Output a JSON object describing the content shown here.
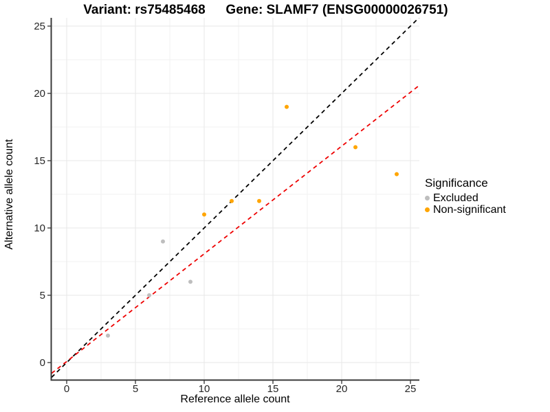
{
  "chart_data": {
    "type": "scatter",
    "title_left": "Variant: rs75485468",
    "title_right": "Gene: SLAMF7 (ENSG00000026751)",
    "xlabel": "Reference allele count",
    "ylabel": "Alternative allele count",
    "xlim": [
      -1.1,
      25.65
    ],
    "ylim": [
      -1.3,
      25.6
    ],
    "x_ticks": [
      0,
      5,
      10,
      15,
      20,
      25
    ],
    "y_ticks": [
      0,
      5,
      10,
      15,
      20,
      25
    ],
    "x_minor_gridlines": [
      2.5,
      7.5,
      12.5,
      17.5,
      22.5
    ],
    "y_minor_gridlines": [
      2.5,
      7.5,
      12.5,
      17.5,
      22.5
    ],
    "grid": "major+minor",
    "legend": {
      "title": "Significance",
      "position": "right",
      "items": [
        {
          "label": "Excluded",
          "color": "#BEBEBE"
        },
        {
          "label": "Non-significant",
          "color": "#FFA500"
        }
      ]
    },
    "series": [
      {
        "name": "Excluded",
        "color": "#BEBEBE",
        "points": [
          [
            3,
            2
          ],
          [
            6,
            5
          ],
          [
            7,
            9
          ],
          [
            9,
            6
          ]
        ]
      },
      {
        "name": "Non-significant",
        "color": "#FFA500",
        "points": [
          [
            10,
            11
          ],
          [
            12,
            12
          ],
          [
            14,
            12
          ],
          [
            16,
            19
          ],
          [
            21,
            16
          ],
          [
            24,
            14
          ]
        ]
      }
    ],
    "lines": [
      {
        "name": "identity-line",
        "color": "#000000",
        "style": "dashed",
        "intercept": 0,
        "slope": 1
      },
      {
        "name": "fit-line",
        "color": "#EE0000",
        "style": "dashed",
        "intercept": 0.08,
        "slope": 0.8
      }
    ]
  }
}
